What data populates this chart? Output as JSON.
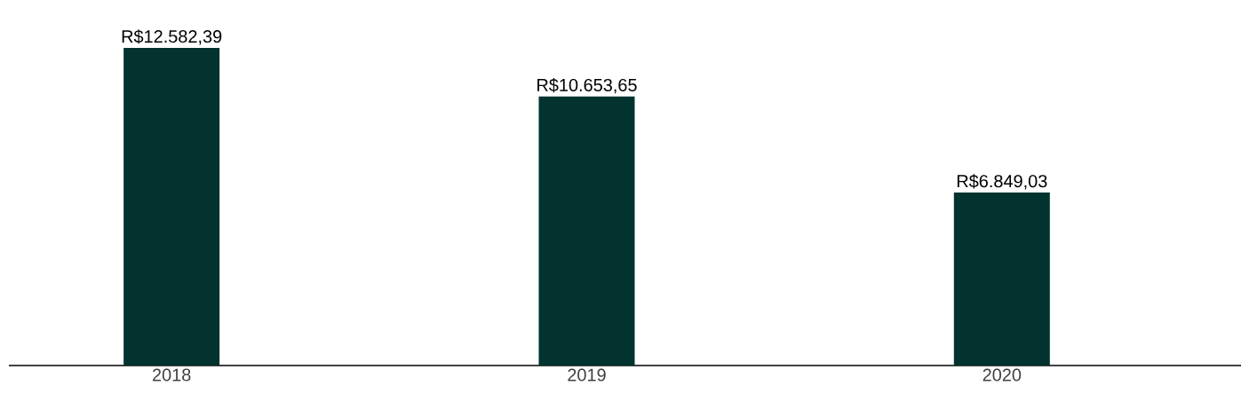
{
  "chart_data": {
    "type": "bar",
    "categories": [
      "2018",
      "2019",
      "2020"
    ],
    "values": [
      12582.39,
      10653.65,
      6849.03
    ],
    "value_labels": [
      "R$12.582,39",
      "R$10.653,65",
      "R$6.849,03"
    ],
    "color": "#02332e"
  }
}
